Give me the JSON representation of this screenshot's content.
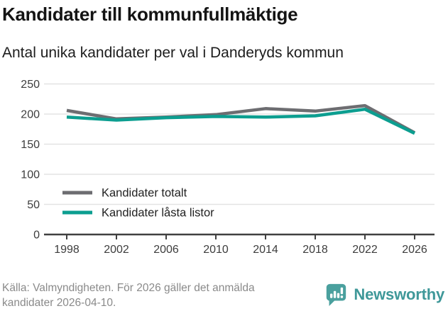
{
  "chart_data": {
    "type": "line",
    "title": "Kandidater till kommunfullmäktige",
    "subtitle": "Antal unika kandidater per val i Danderyds kommun",
    "x": [
      1998,
      2002,
      2006,
      2010,
      2014,
      2018,
      2022,
      2026
    ],
    "series": [
      {
        "name": "Kandidater totalt",
        "color": "#6d6d71",
        "values": [
          206,
          192,
          195,
          199,
          209,
          205,
          214,
          169
        ]
      },
      {
        "name": "Kandidater låsta listor",
        "color": "#0c9e90",
        "values": [
          195,
          190,
          194,
          196,
          195,
          197,
          208,
          168
        ]
      }
    ],
    "xticks": [
      1998,
      2002,
      2006,
      2010,
      2014,
      2018,
      2022,
      2026
    ],
    "yticks": [
      0,
      50,
      100,
      150,
      200,
      250
    ],
    "ylim": [
      0,
      250
    ],
    "xlabel": "",
    "ylabel": "",
    "grid": "horizontal",
    "legend_position": "inside-bottom-left"
  },
  "footer": {
    "source_note": "Källa: Valmyndigheten. För 2026 gäller det anmälda kandidater 2026-04-10.",
    "brand_name": "Newsworthy"
  },
  "colors": {
    "series_total_gray": "#6d6d71",
    "series_locked_teal": "#0c9e90",
    "axis": "#404040",
    "axis_text": "#3d3d3d",
    "gridline": "#e3e3e3",
    "legend_text": "#222222",
    "title_text": "#141414",
    "footer_text": "#8a8a8a",
    "brand_teal": "#3f9899",
    "logo_bg": "#4aa09e"
  }
}
